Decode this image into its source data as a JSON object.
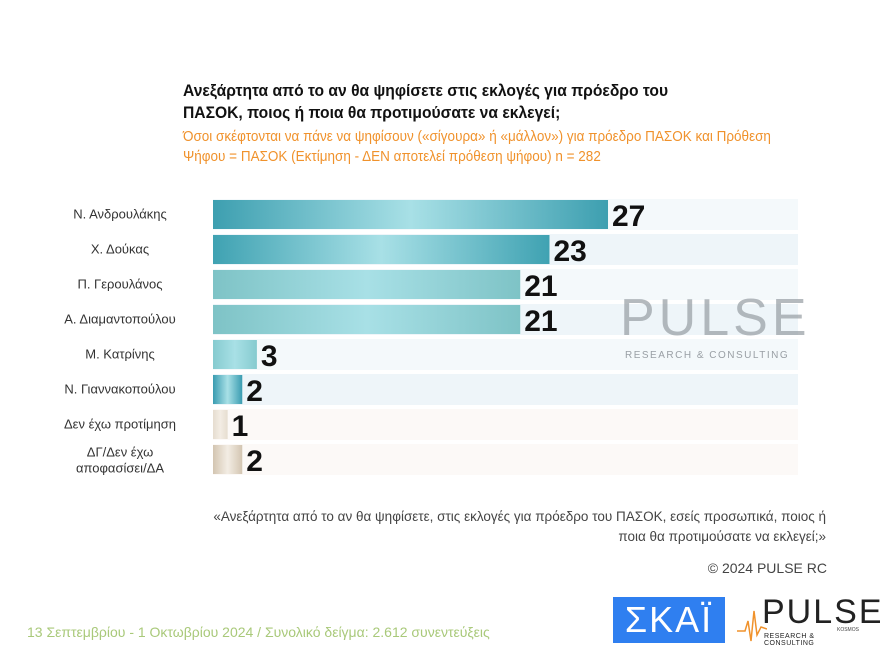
{
  "header": {
    "title": "Ανεξάρτητα από το αν θα ψηφίσετε στις εκλογές για πρόεδρο του ΠΑΣΟΚ, ποιος ή ποια θα προτιμούσατε να εκλεγεί;",
    "subtitle": "Όσοι σκέφτονται να πάνε να ψηφίσουν («σίγουρα» ή «μάλλον») για πρόεδρο ΠΑΣΟΚ και Πρόθεση Ψήφου = ΠΑΣΟΚ (Εκτίμηση - ΔΕΝ αποτελεί πρόθεση ψήφου)    n = 282"
  },
  "chart_data": {
    "type": "bar",
    "orientation": "horizontal",
    "categories": [
      "Ν. Ανδρουλάκης",
      "Χ. Δούκας",
      "Π. Γερουλάνος",
      "Α. Διαμαντοπούλου",
      "Μ. Κατρίνης",
      "Ν. Γιαννακοπούλου",
      "Δεν έχω προτίμηση",
      "ΔΓ/Δεν έχω αποφασίσει/ΔΑ"
    ],
    "values": [
      27,
      23,
      21,
      21,
      3,
      2,
      1,
      2
    ],
    "colors": [
      "#3d9fb0",
      "#3fa2b2",
      "#7ec3c6",
      "#7ec3c6",
      "#86cbcf",
      "#3a9cb1",
      "#e6ddd0",
      "#d3c5b1"
    ],
    "xlim": [
      0,
      40
    ],
    "title": "",
    "xlabel": "",
    "ylabel": "",
    "grid": false,
    "legend": "none"
  },
  "watermark": {
    "brand": "PULSE",
    "tagline": "RESEARCH & CONSULTING"
  },
  "note": "«Ανεξάρτητα από το αν θα ψηφίσετε, στις εκλογές για πρόεδρο του ΠΑΣΟΚ, εσείς προσωπικά, ποιος ή ποια θα προτιμούσατε να εκλεγεί;»",
  "copyright": "© 2024 PULSE RC",
  "footer": "13 Σεπτεμβρίου - 1 Οκτωβρίου 2024  /  Συνολικό δείγμα:  2.612 συνεντεύξεις",
  "logos": {
    "skai": "ΣΚΑΪ",
    "pulse": "PULSE",
    "pulse_tagline": "RESEARCH & CONSULTING",
    "pulse_sub": "KOSMOS"
  }
}
